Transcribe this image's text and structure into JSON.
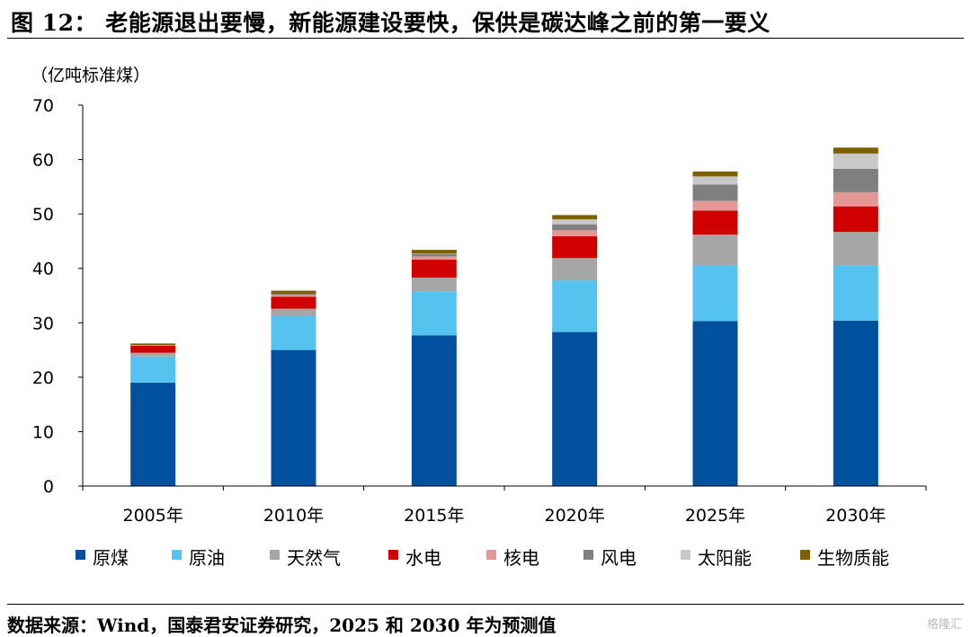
{
  "figure_title": "图 12： 老能源退出要慢，新能源建设要快，保供是碳达峰之前的第一要义",
  "source_note": "数据来源：Wind，国泰君安证券研究，2025 和 2030 年为预测值",
  "watermark": "格隆汇",
  "chart_data": {
    "type": "bar",
    "stacked": true,
    "unit_label": "（亿吨标准煤）",
    "categories": [
      "2005年",
      "2010年",
      "2015年",
      "2020年",
      "2025年",
      "2030年"
    ],
    "ylim": [
      0,
      70
    ],
    "yticks": [
      0,
      10,
      20,
      30,
      40,
      50,
      60,
      70
    ],
    "grid": false,
    "legend_position": "bottom",
    "series": [
      {
        "name": "原煤",
        "color": "#00509e",
        "values": [
          19.0,
          25.0,
          27.7,
          28.3,
          30.3,
          30.4
        ]
      },
      {
        "name": "原油",
        "color": "#55c3ef",
        "values": [
          4.8,
          6.2,
          8.1,
          9.5,
          10.3,
          10.1
        ]
      },
      {
        "name": "天然气",
        "color": "#a6a6a6",
        "values": [
          0.7,
          1.4,
          2.5,
          4.1,
          5.6,
          6.2
        ]
      },
      {
        "name": "水电",
        "color": "#d00000",
        "values": [
          1.3,
          2.2,
          3.3,
          4.0,
          4.4,
          4.7
        ]
      },
      {
        "name": "核电",
        "color": "#e39896",
        "values": [
          0.1,
          0.3,
          0.6,
          1.1,
          1.8,
          2.6
        ]
      },
      {
        "name": "风电",
        "color": "#7f7f7f",
        "values": [
          0.0,
          0.2,
          0.4,
          1.1,
          3.0,
          4.3
        ]
      },
      {
        "name": "太阳能",
        "color": "#c8c8c8",
        "values": [
          0.0,
          0.0,
          0.1,
          0.9,
          1.5,
          2.8
        ]
      },
      {
        "name": "生物质能",
        "color": "#7f6000",
        "values": [
          0.3,
          0.6,
          0.7,
          0.8,
          0.9,
          1.1
        ]
      }
    ]
  }
}
